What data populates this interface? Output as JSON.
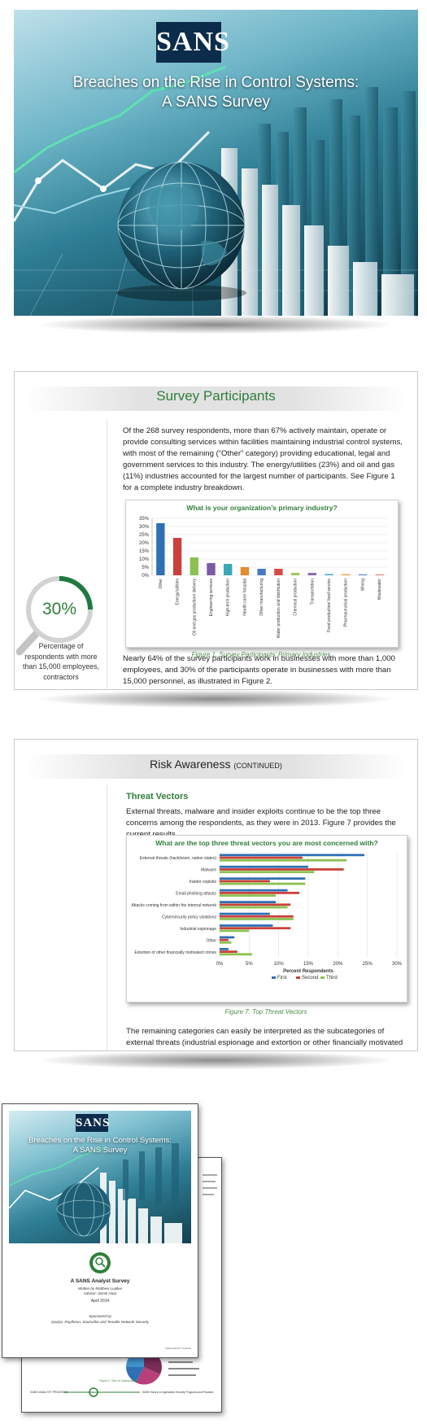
{
  "cover": {
    "logo": "SANS",
    "title_line1": "Breaches on the Rise in Control Systems:",
    "title_line2": "A SANS Survey"
  },
  "participants": {
    "heading": "Survey Participants",
    "paragraph1": "Of the 268 survey respondents, more than 67% actively maintain, operate or provide consulting services within facilities maintaining industrial control systems, with most of the remaining (“Other” category) providing educational, legal and government services to this industry. The energy/utilities (23%) and oil and gas (11%) industries accounted for the largest number of participants. See Figure 1 for a complete industry breakdown.",
    "callout_percent": "30%",
    "callout_text": "Percentage of respondents with more than 15,000 employees, contractors",
    "caption": "Figure 1. Survey Participants’ Primary Industries",
    "paragraph2": "Nearly 64% of the survey participants work in businesses with more than 1,000 employees, and 30% of the participants operate in businesses with more than 15,000 personnel, as illustrated in Figure 2."
  },
  "risk": {
    "heading": "Risk Awareness",
    "heading_suffix": "(CONTINUED)",
    "subheading": "Threat Vectors",
    "paragraph1": "External threats, malware and insider exploits continue to be the top three concerns among the respondents, as they were in 2013. Figure 7 provides the current results.",
    "caption": "Figure 7. Top Threat Vectors",
    "paragraph2": "The remaining categories can easily be interpreted as the subcategories of external threats (industrial espionage and extortion or other financially motivated crimes),"
  },
  "cover2": {
    "logo": "SANS",
    "title_line1": "Breaches on the Rise in Control Systems:",
    "title_line2": "A SANS Survey",
    "survey_label": "A SANS Analyst Survey",
    "written_by": "Written by Matthew Luallen",
    "advisor": "Advisor: Derek Harp",
    "date": "April 2014",
    "sponsored_label": "Sponsored by",
    "sponsors": "Qualys, Raytheon, Sourcefire and Tenable Network Security",
    "copyright": "©2014 SANS™ Institute",
    "back_footer_left": "SANS ANALYST PROGRAM",
    "back_footer_right": "SANS Survey on Application Security Programs and Practices",
    "back_caption": "Figure 2. Size of Organizations"
  },
  "colors": {
    "green": "#2f7f3a",
    "blue": "#2f6fb5",
    "red": "#c9413a",
    "lightgreen": "#8cc152"
  },
  "chart_data": [
    {
      "type": "bar",
      "title": "What is your organization’s primary industry?",
      "categories": [
        "Other",
        "Energy/utilities",
        "Oil and gas production/ delivery",
        "Engineering services",
        "High-tech production",
        "Health care/ hospital",
        "Other manufacturing",
        "Water production and distribution",
        "Chemical production",
        "Transportation",
        "Food production/ food service",
        "Pharmaceutical production",
        "Mining",
        "Wastewater"
      ],
      "values": [
        32,
        23,
        11,
        7.5,
        7,
        5,
        4,
        4,
        1.5,
        1.5,
        0.8,
        0.7,
        0.6,
        0.4
      ],
      "bar_colors": [
        "#2f6fb5",
        "#c9413a",
        "#8cc152",
        "#7b5aa6",
        "#3aa7b5",
        "#e58b2f",
        "#4a7ac2",
        "#d84a44",
        "#9cc95a",
        "#8e68b3",
        "#45b3c0",
        "#ef9a3c",
        "#5b88c8",
        "#d95a55"
      ],
      "ylim": [
        0,
        35
      ],
      "yticks": [
        "0%",
        "5%",
        "10%",
        "15%",
        "20%",
        "25%",
        "30%",
        "35%"
      ],
      "xlabel": "",
      "ylabel": ""
    },
    {
      "type": "bar",
      "orientation": "horizontal",
      "title": "What are the top three threat vectors you are most concerned with?",
      "categories": [
        "External threats (hacktivism, nation states)",
        "Malware",
        "Insider exploits",
        "Email phishing attacks",
        "Attacks coming from within the internal network",
        "Cybersecurity policy violations",
        "Industrial espionage",
        "Other",
        "Extortion of other financially motivated crimes"
      ],
      "series": [
        {
          "name": "First",
          "color": "#2f6fb5",
          "values": [
            24.5,
            15,
            14.5,
            11.5,
            9.5,
            8.5,
            9,
            2.5,
            1.5
          ]
        },
        {
          "name": "Second",
          "color": "#c9413a",
          "values": [
            14,
            21,
            8.5,
            13.5,
            12,
            12.5,
            12,
            1.5,
            3
          ]
        },
        {
          "name": "Third",
          "color": "#8cc152",
          "values": [
            21.5,
            16,
            14.5,
            9.5,
            11.5,
            12.5,
            5,
            2,
            5.5
          ]
        }
      ],
      "xlim": [
        0,
        30
      ],
      "xticks": [
        "0%",
        "5%",
        "10%",
        "15%",
        "20%",
        "25%",
        "30%"
      ],
      "xlabel": "Percent Respondents",
      "legend": "bottom"
    }
  ]
}
